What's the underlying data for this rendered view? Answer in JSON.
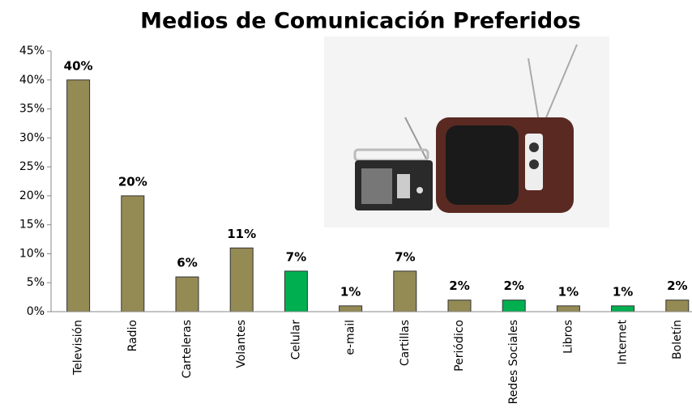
{
  "chart_data": {
    "type": "bar",
    "title": "Medios de Comunicación Preferidos",
    "categories": [
      "Televisión",
      "Radio",
      "Carteleras",
      "Volantes",
      "Celular",
      "e-mail",
      "Cartillas",
      "Periódico",
      "Redes Sociales",
      "Libros",
      "Internet",
      "Boletín"
    ],
    "values": [
      40,
      20,
      6,
      11,
      7,
      1,
      7,
      2,
      2,
      1,
      1,
      2
    ],
    "value_labels": [
      "40%",
      "20%",
      "6%",
      "11%",
      "7%",
      "1%",
      "7%",
      "2%",
      "2%",
      "1%",
      "1%",
      "2%"
    ],
    "colors": [
      "#948a54",
      "#948a54",
      "#948a54",
      "#948a54",
      "#00b050",
      "#948a54",
      "#948a54",
      "#948a54",
      "#00b050",
      "#948a54",
      "#00b050",
      "#948a54"
    ],
    "ylim": [
      0,
      45
    ],
    "yticks": [
      {
        "value": 0,
        "label": "0%"
      },
      {
        "value": 5,
        "label": "5%"
      },
      {
        "value": 10,
        "label": "10%"
      },
      {
        "value": 15,
        "label": "15%"
      },
      {
        "value": 20,
        "label": "20%"
      },
      {
        "value": 25,
        "label": "25%"
      },
      {
        "value": 30,
        "label": "30%"
      },
      {
        "value": 35,
        "label": "35%"
      },
      {
        "value": 40,
        "label": "40%"
      },
      {
        "value": 45,
        "label": "45%"
      }
    ],
    "grid": false
  }
}
